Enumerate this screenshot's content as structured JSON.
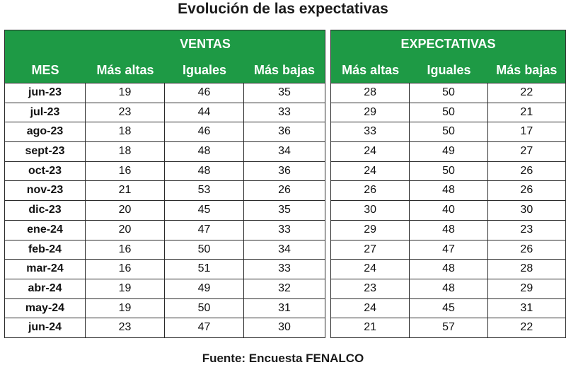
{
  "title": "Evolución de las expectativas",
  "footer": "Fuente: Encuesta FENALCO",
  "colors": {
    "header_green": "#1e9a45",
    "border": "#2a2a2a"
  },
  "ventas": {
    "group_label": "VENTAS",
    "columns": [
      "MES",
      "Más altas",
      "Iguales",
      "Más bajas"
    ]
  },
  "expectativas": {
    "group_label": "EXPECTATIVAS",
    "columns": [
      "Más altas",
      "Iguales",
      "Más bajas"
    ]
  },
  "chart_data": {
    "type": "table",
    "title": "Evolución de las expectativas",
    "rows": [
      {
        "mes": "jun-23",
        "ventas": [
          19,
          46,
          35
        ],
        "expectativas": [
          28,
          50,
          22
        ]
      },
      {
        "mes": "jul-23",
        "ventas": [
          23,
          44,
          33
        ],
        "expectativas": [
          29,
          50,
          21
        ]
      },
      {
        "mes": "ago-23",
        "ventas": [
          18,
          46,
          36
        ],
        "expectativas": [
          33,
          50,
          17
        ]
      },
      {
        "mes": "sept-23",
        "ventas": [
          18,
          48,
          34
        ],
        "expectativas": [
          24,
          49,
          27
        ]
      },
      {
        "mes": "oct-23",
        "ventas": [
          16,
          48,
          36
        ],
        "expectativas": [
          24,
          50,
          26
        ]
      },
      {
        "mes": "nov-23",
        "ventas": [
          21,
          53,
          26
        ],
        "expectativas": [
          26,
          48,
          26
        ]
      },
      {
        "mes": "dic-23",
        "ventas": [
          20,
          45,
          35
        ],
        "expectativas": [
          30,
          40,
          30
        ]
      },
      {
        "mes": "ene-24",
        "ventas": [
          20,
          47,
          33
        ],
        "expectativas": [
          29,
          48,
          23
        ]
      },
      {
        "mes": "feb-24",
        "ventas": [
          16,
          50,
          34
        ],
        "expectativas": [
          27,
          47,
          26
        ]
      },
      {
        "mes": "mar-24",
        "ventas": [
          16,
          51,
          33
        ],
        "expectativas": [
          24,
          48,
          28
        ]
      },
      {
        "mes": "abr-24",
        "ventas": [
          19,
          49,
          32
        ],
        "expectativas": [
          23,
          48,
          29
        ]
      },
      {
        "mes": "may-24",
        "ventas": [
          19,
          50,
          31
        ],
        "expectativas": [
          24,
          45,
          31
        ]
      },
      {
        "mes": "jun-24",
        "ventas": [
          23,
          47,
          30
        ],
        "expectativas": [
          21,
          57,
          22
        ]
      }
    ]
  }
}
